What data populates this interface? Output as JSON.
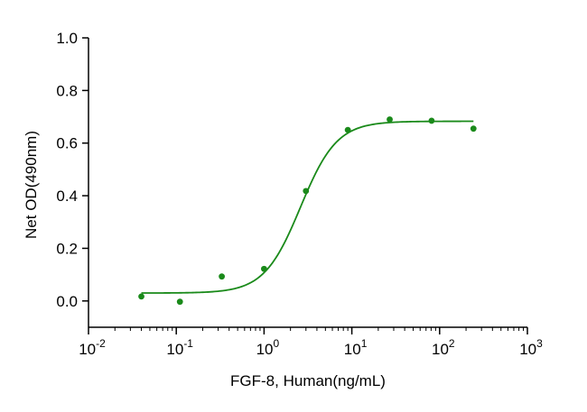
{
  "chart_data": {
    "type": "scatter",
    "title": "",
    "xlabel": "FGF-8, Human(ng/mL)",
    "ylabel": "Net OD(490nm)",
    "xscale": "log",
    "xlim": [
      0.01,
      1000
    ],
    "ylim": [
      -0.1,
      1.0
    ],
    "grid": false,
    "legend": "none",
    "colors": {
      "series": "#1a8a1a",
      "axis": "#000000"
    },
    "x_ticks": [
      {
        "base": "10",
        "exp": "-2",
        "value": 0.01
      },
      {
        "base": "10",
        "exp": "-1",
        "value": 0.1
      },
      {
        "base": "10",
        "exp": "0",
        "value": 1
      },
      {
        "base": "10",
        "exp": "1",
        "value": 10
      },
      {
        "base": "10",
        "exp": "2",
        "value": 100
      },
      {
        "base": "10",
        "exp": "3",
        "value": 1000
      }
    ],
    "y_ticks": [
      {
        "label": "0.0",
        "value": 0.0
      },
      {
        "label": "0.2",
        "value": 0.2
      },
      {
        "label": "0.4",
        "value": 0.4
      },
      {
        "label": "0.6",
        "value": 0.6
      },
      {
        "label": "0.8",
        "value": 0.8
      },
      {
        "label": "1.0",
        "value": 1.0
      }
    ],
    "series": [
      {
        "points": [
          {
            "x": 0.04,
            "y": 0.017
          },
          {
            "x": 0.11,
            "y": -0.003
          },
          {
            "x": 0.33,
            "y": 0.093
          },
          {
            "x": 1.0,
            "y": 0.122
          },
          {
            "x": 3.0,
            "y": 0.418
          },
          {
            "x": 9.0,
            "y": 0.65
          },
          {
            "x": 27.0,
            "y": 0.69
          },
          {
            "x": 81.0,
            "y": 0.685
          },
          {
            "x": 243.0,
            "y": 0.655
          }
        ],
        "fit": {
          "model": "4PL",
          "bottom": 0.03,
          "top": 0.683,
          "ec50": 2.6,
          "hill": 2.1,
          "x_range": [
            0.04,
            243.0
          ]
        }
      }
    ]
  }
}
